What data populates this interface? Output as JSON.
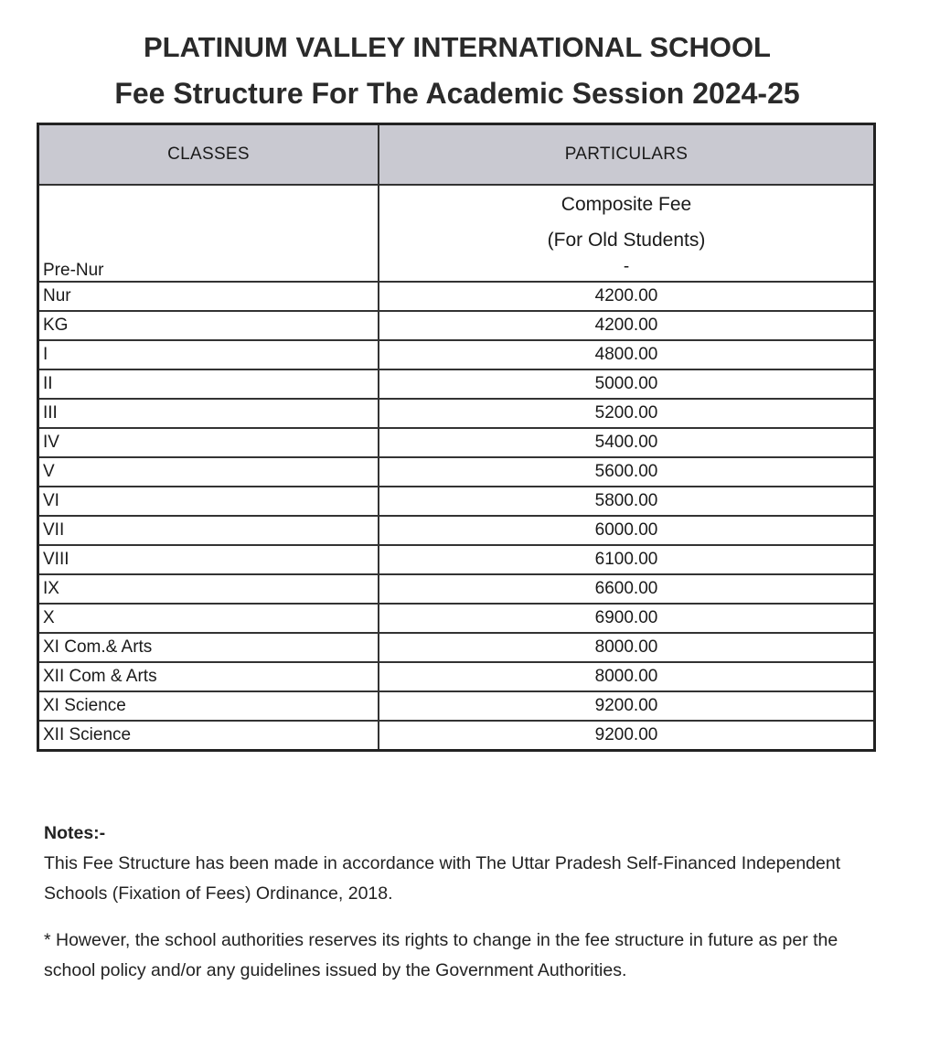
{
  "title": "PLATINUM VALLEY INTERNATIONAL SCHOOL",
  "subtitle": "Fee Structure For The Academic Session 2024-25",
  "table": {
    "headers": [
      "CLASSES",
      "PARTICULARS"
    ],
    "subheader": [
      "Composite Fee",
      "(For Old Students)"
    ],
    "rows": [
      {
        "cls": "Pre-Nur",
        "fee": "-"
      },
      {
        "cls": "Nur",
        "fee": "4200.00"
      },
      {
        "cls": "KG",
        "fee": "4200.00"
      },
      {
        "cls": "I",
        "fee": "4800.00"
      },
      {
        "cls": "II",
        "fee": "5000.00"
      },
      {
        "cls": "III",
        "fee": "5200.00"
      },
      {
        "cls": "IV",
        "fee": "5400.00"
      },
      {
        "cls": "V",
        "fee": "5600.00"
      },
      {
        "cls": "VI",
        "fee": "5800.00"
      },
      {
        "cls": "VII",
        "fee": "6000.00"
      },
      {
        "cls": "VIII",
        "fee": "6100.00"
      },
      {
        "cls": "IX",
        "fee": "6600.00"
      },
      {
        "cls": "X",
        "fee": "6900.00"
      },
      {
        "cls": "XI Com.& Arts",
        "fee": "8000.00"
      },
      {
        "cls": "XII Com & Arts",
        "fee": "8000.00"
      },
      {
        "cls": "XI Science",
        "fee": "9200.00"
      },
      {
        "cls": "XII Science",
        "fee": "9200.00"
      }
    ]
  },
  "notes": {
    "heading": "Notes:-",
    "items": [
      "This Fee Structure has been made in accordance with The Uttar Pradesh Self-Financed Independent Schools (Fixation of Fees) Ordinance, 2018.",
      "* However, the school authorities reserves its rights to change in the fee structure in future as per the school policy and/or any guidelines issued by the Government Authorities."
    ]
  }
}
